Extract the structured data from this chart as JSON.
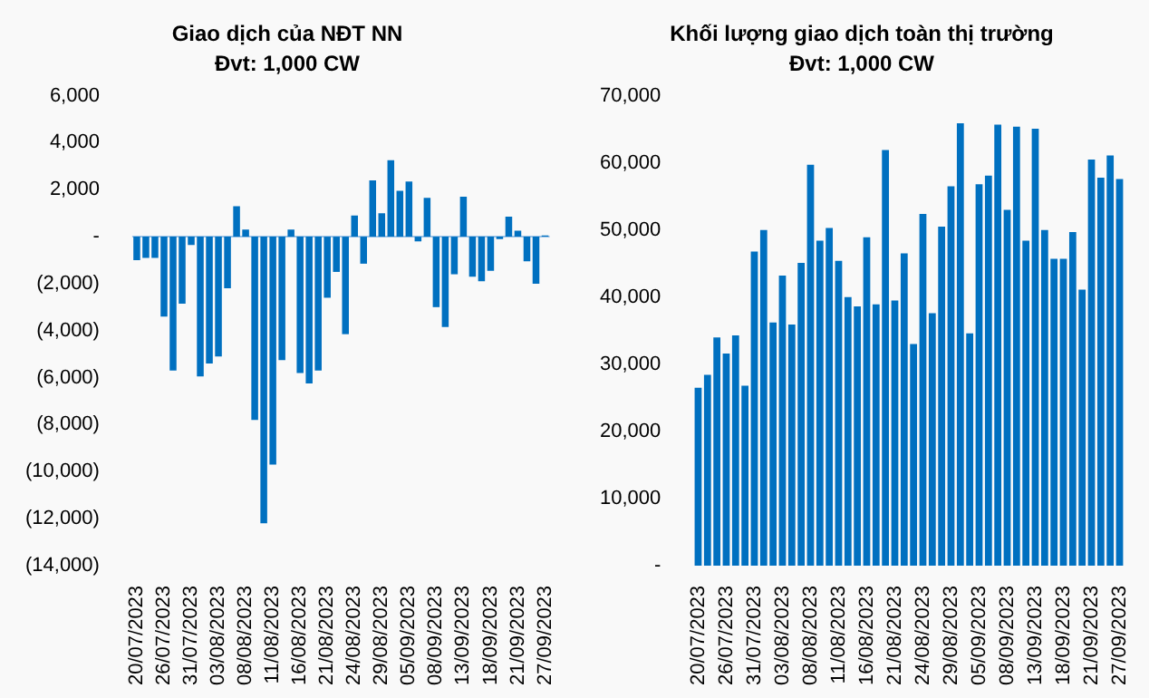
{
  "chart_data": [
    {
      "type": "bar",
      "title": "Giao dịch của NĐT NN",
      "subtitle": "Đvt: 1,000 CW",
      "categories": [
        "20/07/2023",
        null,
        null,
        "26/07/2023",
        null,
        null,
        "31/07/2023",
        null,
        null,
        "03/08/2023",
        null,
        null,
        "08/08/2023",
        null,
        null,
        "11/08/2023",
        null,
        null,
        "16/08/2023",
        null,
        null,
        "21/08/2023",
        null,
        null,
        "24/08/2023",
        null,
        null,
        "29/08/2023",
        null,
        null,
        "05/09/2023",
        null,
        null,
        "08/09/2023",
        null,
        null,
        "13/09/2023",
        null,
        null,
        "18/09/2023",
        null,
        null,
        "21/09/2023",
        null,
        null,
        "27/09/2023"
      ],
      "series": [
        {
          "color": "#0070c0",
          "values": [
            -1000,
            -900,
            -900,
            -3400,
            -5700,
            -2850,
            -350,
            -5950,
            -5400,
            -5100,
            -2200,
            1300,
            300,
            -7800,
            -12200,
            -9700,
            -5250,
            300,
            -5800,
            -6250,
            -5700,
            -2600,
            -1500,
            -4150,
            900,
            -1150,
            2400,
            1000,
            3250,
            1950,
            2350,
            -200,
            1650,
            -3000,
            -3850,
            -1600,
            1700,
            -1700,
            -1900,
            -1450,
            -100,
            850,
            250,
            -1050,
            -2000,
            50
          ]
        }
      ],
      "ylim": [
        -14000,
        6000
      ],
      "ref_lines": [
        {
          "axis": "y",
          "value": 0,
          "color": "#9dc3e6"
        }
      ],
      "yticks": [
        {
          "value": -14000,
          "label": "(14,000)"
        },
        {
          "value": -12000,
          "label": "(12,000)"
        },
        {
          "value": -10000,
          "label": "(10,000)"
        },
        {
          "value": -8000,
          "label": "(8,000)"
        },
        {
          "value": -6000,
          "label": "(6,000)"
        },
        {
          "value": -4000,
          "label": "(4,000)"
        },
        {
          "value": -2000,
          "label": "(2,000)"
        },
        {
          "value": 0,
          "label": "-"
        },
        {
          "value": 2000,
          "label": "2,000"
        },
        {
          "value": 4000,
          "label": "4,000"
        },
        {
          "value": 6000,
          "label": "6,000"
        }
      ]
    },
    {
      "type": "bar",
      "title": "Khối lượng giao dịch toàn thị trường",
      "subtitle": "Đvt: 1,000 CW",
      "categories": [
        "20/07/2023",
        null,
        null,
        "26/07/2023",
        null,
        null,
        "31/07/2023",
        null,
        null,
        "03/08/2023",
        null,
        null,
        "08/08/2023",
        null,
        null,
        "11/08/2023",
        null,
        null,
        "16/08/2023",
        null,
        null,
        "21/08/2023",
        null,
        null,
        "24/08/2023",
        null,
        null,
        "29/08/2023",
        null,
        null,
        "05/09/2023",
        null,
        null,
        "08/09/2023",
        null,
        null,
        "13/09/2023",
        null,
        null,
        "18/09/2023",
        null,
        null,
        "21/09/2023",
        null,
        null,
        "27/09/2023"
      ],
      "series": [
        {
          "color": "#0070c0",
          "values": [
            26500,
            28400,
            34000,
            31600,
            34300,
            26800,
            46800,
            50000,
            36200,
            43200,
            35900,
            45100,
            59700,
            48400,
            50300,
            45400,
            40000,
            38600,
            48900,
            38900,
            61900,
            39500,
            46500,
            33000,
            52400,
            37600,
            50500,
            56500,
            65900,
            34600,
            56800,
            58100,
            65700,
            53000,
            65400,
            48400,
            65100,
            50000,
            45700,
            45700,
            49700,
            41100,
            60500,
            57800,
            61100,
            57600
          ]
        }
      ],
      "ylim": [
        0,
        70000
      ],
      "yticks": [
        {
          "value": 0,
          "label": "-"
        },
        {
          "value": 10000,
          "label": "10,000"
        },
        {
          "value": 20000,
          "label": "20,000"
        },
        {
          "value": 30000,
          "label": "30,000"
        },
        {
          "value": 40000,
          "label": "40,000"
        },
        {
          "value": 50000,
          "label": "50,000"
        },
        {
          "value": 60000,
          "label": "60,000"
        },
        {
          "value": 70000,
          "label": "70,000"
        }
      ]
    }
  ]
}
